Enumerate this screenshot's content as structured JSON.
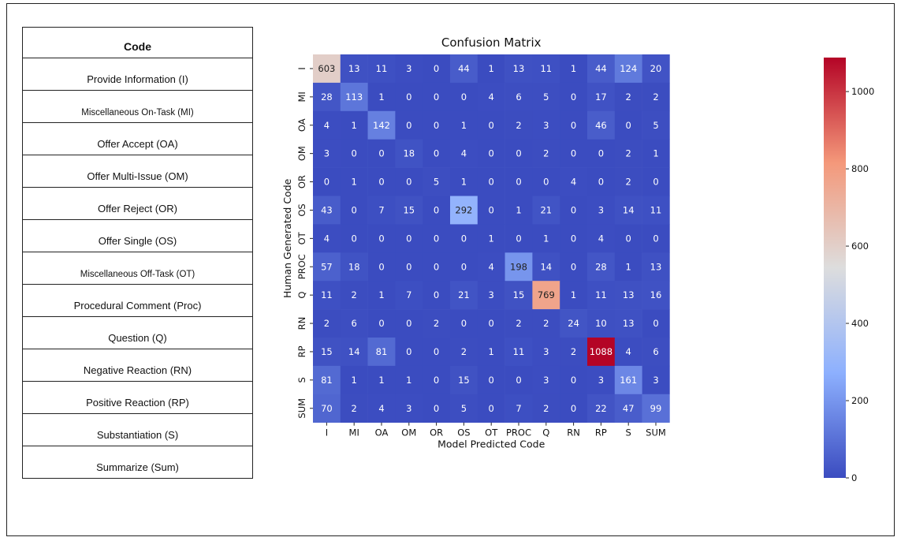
{
  "code_table": {
    "header": "Code",
    "rows": [
      "Provide Information (I)",
      "Miscellaneous On-Task (MI)",
      "Offer Accept (OA)",
      "Offer Multi-Issue (OM)",
      "Offer Reject (OR)",
      "Offer Single (OS)",
      "Miscellaneous Off-Task (OT)",
      "Procedural Comment (Proc)",
      "Question (Q)",
      "Negative Reaction (RN)",
      "Positive Reaction (RP)",
      "Substantiation (S)",
      "Summarize (Sum)"
    ]
  },
  "chart_data": {
    "type": "heatmap",
    "title": "Confusion Matrix",
    "xlabel": "Model Predicted Code",
    "ylabel": "Human Generated Code",
    "x_categories": [
      "I",
      "MI",
      "OA",
      "OM",
      "OR",
      "OS",
      "OT",
      "PROC",
      "Q",
      "RN",
      "RP",
      "S",
      "SUM"
    ],
    "y_categories": [
      "I",
      "MI",
      "OA",
      "OM",
      "OR",
      "OS",
      "OT",
      "PROC",
      "Q",
      "RN",
      "RP",
      "S",
      "SUM"
    ],
    "values": [
      [
        603,
        13,
        11,
        3,
        0,
        44,
        1,
        13,
        11,
        1,
        44,
        124,
        20
      ],
      [
        28,
        113,
        1,
        0,
        0,
        0,
        4,
        6,
        5,
        0,
        17,
        2,
        2
      ],
      [
        4,
        1,
        142,
        0,
        0,
        1,
        0,
        2,
        3,
        0,
        46,
        0,
        5
      ],
      [
        3,
        0,
        0,
        18,
        0,
        4,
        0,
        0,
        2,
        0,
        0,
        2,
        1
      ],
      [
        0,
        1,
        0,
        0,
        5,
        1,
        0,
        0,
        0,
        4,
        0,
        2,
        0
      ],
      [
        43,
        0,
        7,
        15,
        0,
        292,
        0,
        1,
        21,
        0,
        3,
        14,
        11
      ],
      [
        4,
        0,
        0,
        0,
        0,
        0,
        1,
        0,
        1,
        0,
        4,
        0,
        0
      ],
      [
        57,
        18,
        0,
        0,
        0,
        0,
        4,
        198,
        14,
        0,
        28,
        1,
        13
      ],
      [
        11,
        2,
        1,
        7,
        0,
        21,
        3,
        15,
        769,
        1,
        11,
        13,
        16
      ],
      [
        2,
        6,
        0,
        0,
        2,
        0,
        0,
        2,
        2,
        24,
        10,
        13,
        0
      ],
      [
        15,
        14,
        81,
        0,
        0,
        2,
        1,
        11,
        3,
        2,
        1088,
        4,
        6
      ],
      [
        81,
        1,
        1,
        1,
        0,
        15,
        0,
        0,
        3,
        0,
        3,
        161,
        3
      ],
      [
        70,
        2,
        4,
        3,
        0,
        5,
        0,
        7,
        2,
        0,
        22,
        47,
        99
      ]
    ],
    "colorbar": {
      "colormap": "coolwarm",
      "range": [
        0,
        1088
      ],
      "ticks": [
        0,
        200,
        400,
        600,
        800,
        1000
      ],
      "colors": [
        "#3b4cc0",
        "#8db0fe",
        "#dddddd",
        "#f4987a",
        "#b40426"
      ]
    }
  }
}
